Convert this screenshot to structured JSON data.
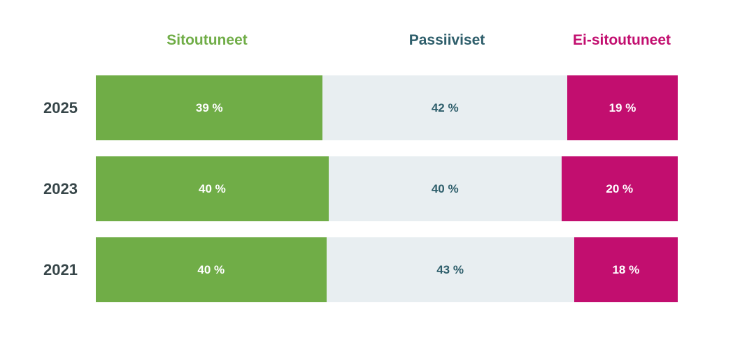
{
  "chart_data": {
    "type": "bar",
    "orientation": "horizontal",
    "stacked": true,
    "categories": [
      "2025",
      "2023",
      "2021"
    ],
    "series": [
      {
        "name": "Sitoutuneet",
        "values": [
          39,
          40,
          40
        ],
        "labels": [
          "39 %",
          "40 %",
          "40 %"
        ],
        "color": "#70ad47",
        "label_color": "#ffffff"
      },
      {
        "name": "Passiiviset",
        "values": [
          42,
          40,
          43
        ],
        "labels": [
          "42 %",
          "40 %",
          "43 %"
        ],
        "color": "#e8eef1",
        "label_color": "#2e5e6b"
      },
      {
        "name": "Ei-sitoutuneet",
        "values": [
          19,
          20,
          18
        ],
        "labels": [
          "19 %",
          "20 %",
          "18 %"
        ],
        "color": "#c20e6f",
        "label_color": "#ffffff"
      }
    ],
    "legend_placement": "top",
    "grid": false
  }
}
